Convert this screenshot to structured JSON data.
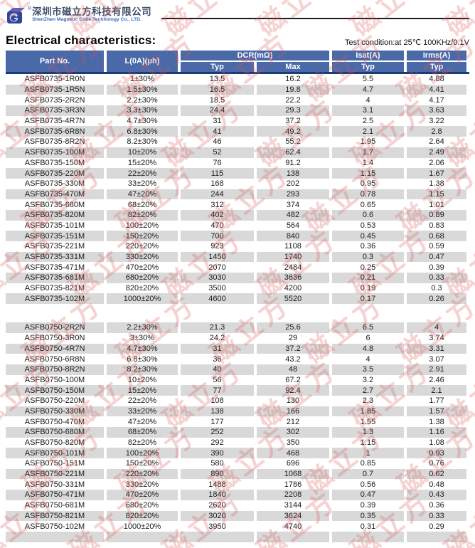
{
  "logo": {
    "company_name_cn": "深圳市磁立方科技有限公司",
    "company_name_en": "ShenZhen Magnetic Cube Technology Co., LTD.",
    "registered_mark": "®"
  },
  "page": {
    "title": "Electrical characteristics:",
    "test_condition": "Test condition:at 25℃  100KHz/0.1V"
  },
  "watermark": {
    "text": "磁立方",
    "color": "#dd5555"
  },
  "colors": {
    "header_bg": "#4a69a8",
    "header_border": "#1e3c74",
    "row_shade": "#d9d9d9",
    "logo_blue": "#2e4699"
  },
  "table": {
    "headers": {
      "part_no": "Part No.",
      "inductance": "L(0A)(μh)",
      "dcr": "DCR(mΩ)",
      "isat": "Isat(A)",
      "irms": "Irms(A)",
      "typ": "Typ",
      "max": "Max"
    },
    "sections": [
      {
        "series": "ASFB0735",
        "first_row_shaded": false,
        "rows": [
          [
            "ASFB0735-1R0N",
            "1±30%",
            "13.5",
            "16.2",
            "5.5",
            "4.88"
          ],
          [
            "ASFB0735-1R5N",
            "1.5±30%",
            "16.5",
            "19.8",
            "4.7",
            "4.41"
          ],
          [
            "ASFB0735-2R2N",
            "2.2±30%",
            "18.5",
            "22.2",
            "4",
            "4.17"
          ],
          [
            "ASFB0735-3R3N",
            "3.3±30%",
            "24.4",
            "29.3",
            "3.1",
            "3.63"
          ],
          [
            "ASFB0735-4R7N",
            "4.7±30%",
            "31",
            "37.2",
            "2.5",
            "3.22"
          ],
          [
            "ASFB0735-6R8N",
            "6.8±30%",
            "41",
            "49.2",
            "2.1",
            "2.8"
          ],
          [
            "ASFB0735-8R2N",
            "8.2±30%",
            "46",
            "55.2",
            "1.95",
            "2.64"
          ],
          [
            "ASFB0735-100M",
            "10±20%",
            "52",
            "62.4",
            "1.7",
            "2.49"
          ],
          [
            "ASFB0735-150M",
            "15±20%",
            "76",
            "91.2",
            "1.4",
            "2.06"
          ],
          [
            "ASFB0735-220M",
            "22±20%",
            "115",
            "138",
            "1.15",
            "1.67"
          ],
          [
            "ASFB0735-330M",
            "33±20%",
            "168",
            "202",
            "0.95",
            "1.38"
          ],
          [
            "ASFB0735-470M",
            "47±20%",
            "244",
            "293",
            "0.78",
            "1.15"
          ],
          [
            "ASFB0735-680M",
            "68±20%",
            "312",
            "374",
            "0.65",
            "1.01"
          ],
          [
            "ASFB0735-820M",
            "82±20%",
            "402",
            "482",
            "0.6",
            "0.89"
          ],
          [
            "ASFB0735-101M",
            "100±20%",
            "470",
            "564",
            "0.53",
            "0.83"
          ],
          [
            "ASFB0735-151M",
            "150±20%",
            "700",
            "840",
            "0.45",
            "0.68"
          ],
          [
            "ASFB0735-221M",
            "220±20%",
            "923",
            "1108",
            "0.36",
            "0.59"
          ],
          [
            "ASFB0735-331M",
            "330±20%",
            "1450",
            "1740",
            "0.3",
            "0.47"
          ],
          [
            "ASFB0735-471M",
            "470±20%",
            "2070",
            "2484",
            "0.25",
            "0.39"
          ],
          [
            "ASFB0735-681M",
            "680±20%",
            "3030",
            "3636",
            "0.21",
            "0.33"
          ],
          [
            "ASFB0735-821M",
            "820±20%",
            "3500",
            "4200",
            "0.19",
            "0.3"
          ],
          [
            "ASFB0735-102M",
            "1000±20%",
            "4600",
            "5520",
            "0.17",
            "0.26"
          ]
        ]
      },
      {
        "series": "ASFB0750",
        "first_row_shaded": true,
        "rows": [
          [
            "ASFB0750-2R2N",
            "2.2±30%",
            "21.3",
            "25.6",
            "6.5",
            "4"
          ],
          [
            "ASFB0750-3R0N",
            "3±30%",
            "24.2",
            "29",
            "6",
            "3.74"
          ],
          [
            "ASFB0750-4R7N",
            "4.7±30%",
            "31",
            "37.2",
            "4.8",
            "3.31"
          ],
          [
            "ASFB0750-6R8N",
            "6.8±30%",
            "36",
            "43.2",
            "4",
            "3.07"
          ],
          [
            "ASFB0750-8R2N",
            "8.2±30%",
            "40",
            "48",
            "3.5",
            "2.91"
          ],
          [
            "ASFB0750-100M",
            "10±20%",
            "56",
            "67.2",
            "3.2",
            "2.46"
          ],
          [
            "ASFB0750-150M",
            "15±20%",
            "77",
            "92.4",
            "2.7",
            "2.1"
          ],
          [
            "ASFB0750-220M",
            "22±20%",
            "108",
            "130",
            "2.3",
            "1.77"
          ],
          [
            "ASFB0750-330M",
            "33±20%",
            "138",
            "166",
            "1.85",
            "1.57"
          ],
          [
            "ASFB0750-470M",
            "47±20%",
            "177",
            "212",
            "1.55",
            "1.38"
          ],
          [
            "ASFB0750-680M",
            "68±20%",
            "252",
            "302",
            "1.3",
            "1.16"
          ],
          [
            "ASFB0750-820M",
            "82±20%",
            "292",
            "350",
            "1.15",
            "1.08"
          ],
          [
            "ASFB0750-101M",
            "100±20%",
            "390",
            "468",
            "1",
            "0.93"
          ],
          [
            "ASFB0750-151M",
            "150±20%",
            "580",
            "696",
            "0.85",
            "0.76"
          ],
          [
            "ASFB0750-221M",
            "220±20%",
            "890",
            "1068",
            "0.7",
            "0.62"
          ],
          [
            "ASFB0750-331M",
            "330±20%",
            "1488",
            "1786",
            "0.56",
            "0.48"
          ],
          [
            "ASFB0750-471M",
            "470±20%",
            "1840",
            "2208",
            "0.47",
            "0.43"
          ],
          [
            "ASFB0750-681M",
            "680±20%",
            "2620",
            "3144",
            "0.39",
            "0.36"
          ],
          [
            "ASFB0750-821M",
            "820±20%",
            "3020",
            "3624",
            "0.35",
            "0.33"
          ],
          [
            "ASFB0750-102M",
            "1000±20%",
            "3950",
            "4740",
            "0.31",
            "0.29"
          ],
          [
            "",
            "",
            "",
            "",
            "",
            ""
          ]
        ]
      }
    ]
  }
}
